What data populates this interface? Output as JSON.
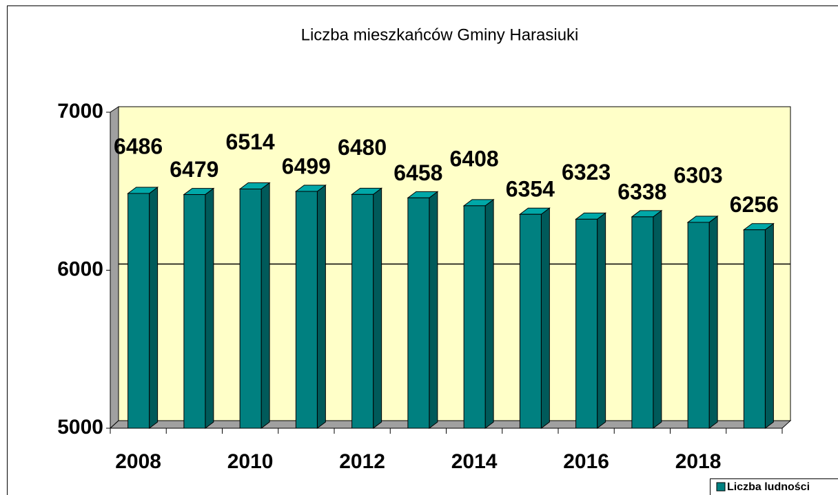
{
  "chart_data": {
    "type": "bar",
    "title": "Liczba mieszkańców Gminy Harasiuki",
    "categories": [
      "2008",
      null,
      "2010",
      null,
      "2012",
      null,
      "2014",
      null,
      "2016",
      null,
      "2018",
      null
    ],
    "series": [
      {
        "name": "Liczba ludności",
        "color": "#008080",
        "values": [
          6486,
          6479,
          6514,
          6499,
          6480,
          6458,
          6408,
          6354,
          6323,
          6338,
          6303,
          6256
        ]
      }
    ],
    "ylim": [
      5000,
      7000
    ],
    "yticks": [
      5000,
      6000,
      7000
    ],
    "grid": true,
    "legend": "bottom-right"
  }
}
